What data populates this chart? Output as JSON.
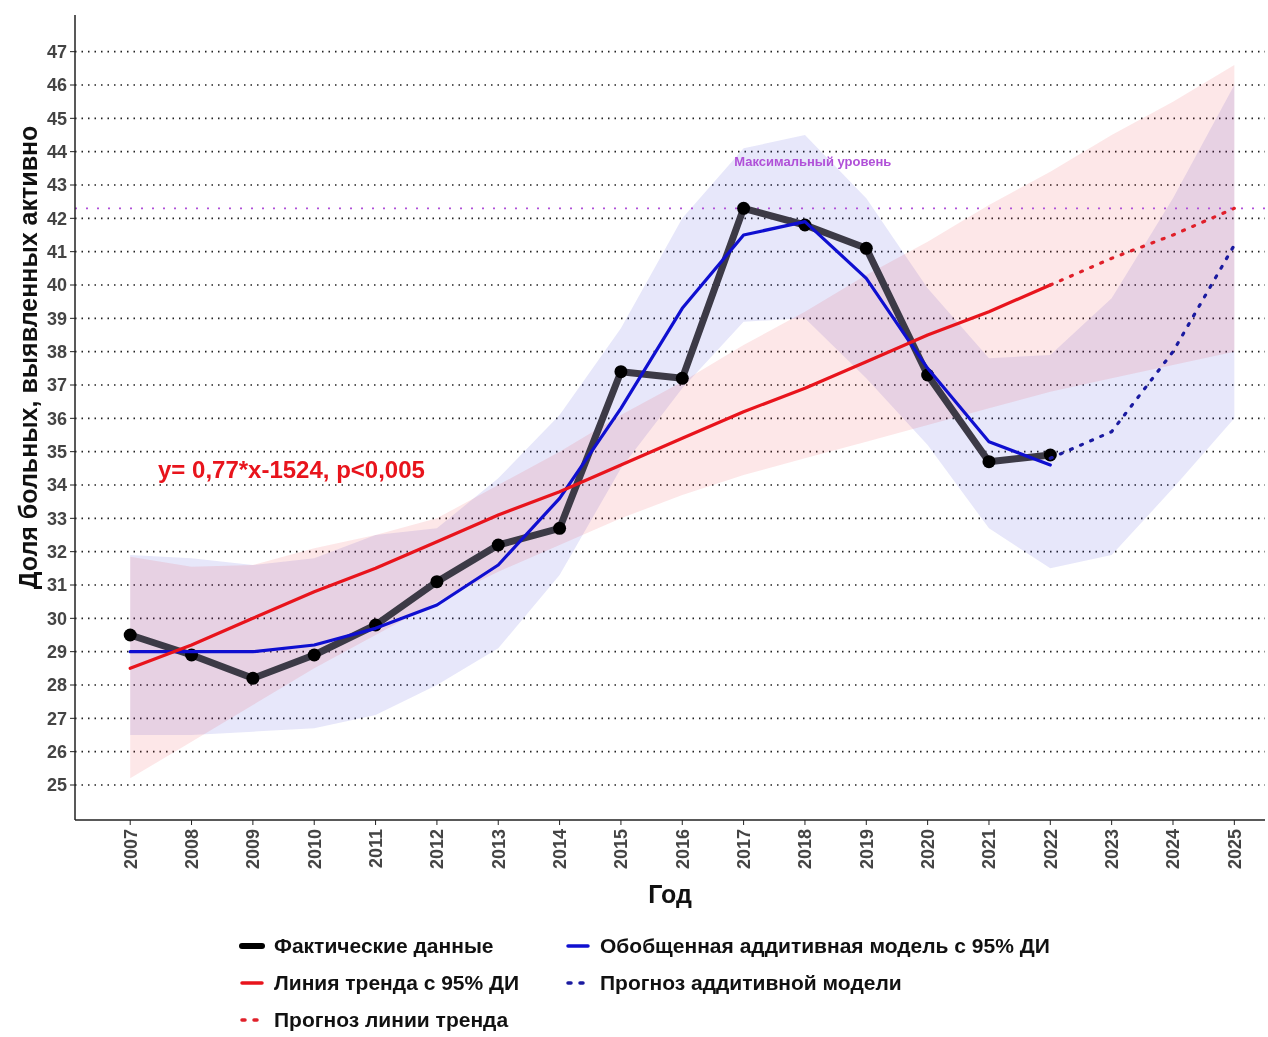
{
  "chart_data": {
    "type": "line",
    "xlabel": "Год",
    "ylabel": "Доля больных, выявленных активно",
    "x": [
      2007,
      2008,
      2009,
      2010,
      2011,
      2012,
      2013,
      2014,
      2015,
      2016,
      2017,
      2018,
      2019,
      2020,
      2021,
      2022,
      2023,
      2024,
      2025
    ],
    "xlim": [
      2006.1,
      2025.5
    ],
    "xticks": [
      2007,
      2008,
      2009,
      2010,
      2011,
      2012,
      2013,
      2014,
      2015,
      2016,
      2017,
      2018,
      2019,
      2020,
      2021,
      2022,
      2023,
      2024,
      2025
    ],
    "ylim": [
      23.95,
      48.1
    ],
    "yticks": [
      25,
      26,
      27,
      28,
      29,
      30,
      31,
      32,
      33,
      34,
      35,
      36,
      37,
      38,
      39,
      40,
      41,
      42,
      43,
      44,
      45,
      46,
      47
    ],
    "grid": "y",
    "legend": "bottom",
    "series": [
      {
        "name": "Фактические данные",
        "color": "#3c3a46",
        "marker": "circle",
        "values": [
          29.5,
          28.9,
          28.2,
          28.9,
          29.8,
          31.1,
          32.2,
          32.7,
          37.4,
          37.2,
          42.3,
          41.8,
          41.1,
          37.3,
          34.7,
          34.9,
          null,
          null,
          null
        ]
      },
      {
        "name": "Обобщенная аддитивная модель с 95% ДИ",
        "color": "#0f0fd0",
        "values": [
          29.0,
          29.0,
          29.0,
          29.2,
          29.7,
          30.4,
          31.6,
          33.6,
          36.3,
          39.3,
          41.5,
          41.9,
          40.2,
          37.5,
          35.3,
          34.6,
          null,
          null,
          null
        ],
        "lower": [
          26.5,
          26.5,
          26.6,
          26.7,
          27.1,
          28.0,
          29.1,
          31.3,
          34.5,
          36.9,
          38.9,
          39.0,
          37.2,
          35.2,
          32.7,
          31.5,
          31.9,
          33.9,
          36.0
        ],
        "upper": [
          31.9,
          31.8,
          31.6,
          31.8,
          32.5,
          32.7,
          34.2,
          36.1,
          38.7,
          42.0,
          44.1,
          44.5,
          42.6,
          39.9,
          37.8,
          37.9,
          39.6,
          42.6,
          46.0
        ]
      },
      {
        "name": "Линия тренда с 95% ДИ",
        "color": "#e8141c",
        "values": [
          28.5,
          29.2,
          30.0,
          30.8,
          31.5,
          32.3,
          33.1,
          33.8,
          34.6,
          35.4,
          36.2,
          36.9,
          37.7,
          38.5,
          39.2,
          40.0,
          null,
          null,
          null
        ],
        "lower": [
          25.2,
          26.3,
          27.4,
          28.5,
          29.5,
          30.5,
          31.4,
          32.2,
          33.0,
          33.7,
          34.3,
          34.8,
          35.3,
          35.8,
          36.3,
          36.8,
          37.2,
          37.6,
          38.0
        ],
        "upper": [
          31.85,
          31.55,
          31.6,
          32.1,
          32.5,
          33.0,
          34.0,
          35.0,
          36.1,
          37.1,
          38.2,
          39.2,
          40.3,
          41.3,
          42.4,
          43.4,
          44.5,
          45.5,
          46.6
        ]
      },
      {
        "name": "Прогноз аддитивной модели",
        "color": "#1a1aa0",
        "line_style": "dotted",
        "x": [
          2022,
          2023,
          2024,
          2025
        ],
        "values": [
          34.8,
          35.6,
          38.0,
          41.2
        ]
      },
      {
        "name": "Прогноз линии тренда",
        "color": "#e0202a",
        "line_style": "dotted",
        "x": [
          2022,
          2023,
          2024,
          2025
        ],
        "values": [
          40.0,
          40.8,
          41.5,
          42.3
        ]
      }
    ],
    "ref_lines": [
      {
        "axis": "y",
        "value": 42.3,
        "label": "Максимальный уровень",
        "color": "#b050d8",
        "line_style": "dotted"
      }
    ],
    "annotations": [
      "y= 0,77*x-1524, p<0,005"
    ]
  }
}
